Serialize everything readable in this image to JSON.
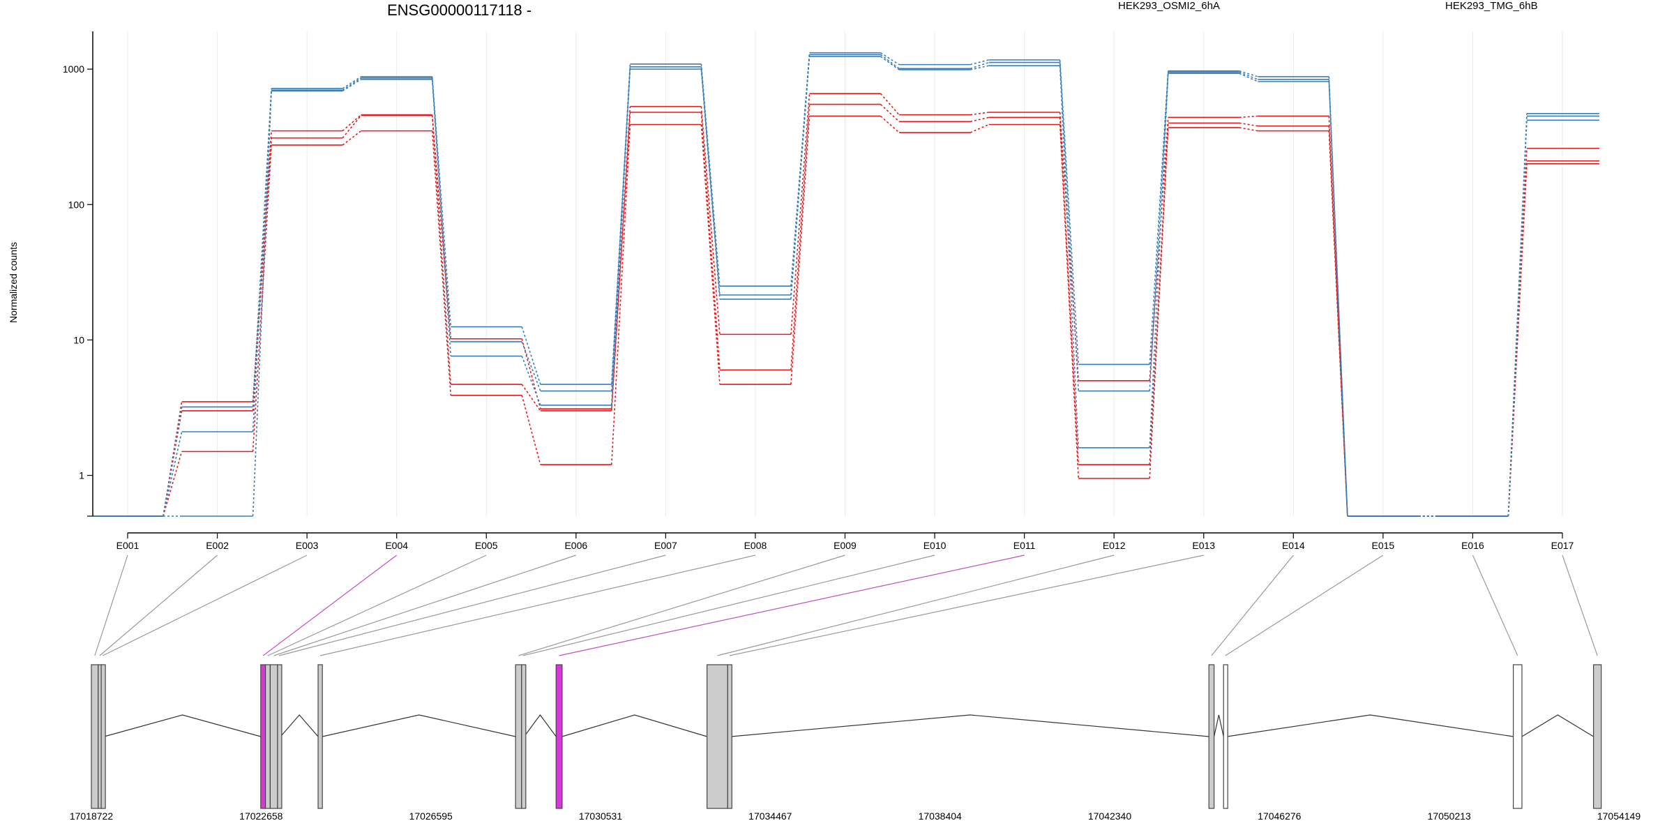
{
  "chart_data": {
    "type": "line",
    "title": "ENSG00000117118 -",
    "ylabel": "Normalized counts",
    "yscale": "log",
    "ylim": [
      0.5,
      1900
    ],
    "yticks": [
      1,
      10,
      100,
      1000
    ],
    "ytick_labels": [
      "1",
      "10",
      "100",
      "1000"
    ],
    "grid": true,
    "legend_position": "top",
    "categories": [
      "E001",
      "E002",
      "E003",
      "E004",
      "E005",
      "E006",
      "E007",
      "E008",
      "E009",
      "E010",
      "E011",
      "E012",
      "E013",
      "E014",
      "E015",
      "E016",
      "E017"
    ],
    "groups": [
      {
        "name": "HEK293_OSMI2_6hA",
        "color": "#e41a1c"
      },
      {
        "name": "HEK293_TMG_6hB",
        "color": "#377eb8"
      }
    ],
    "series": [
      {
        "group": 0,
        "values": [
          0.5,
          3.5,
          350,
          460,
          10.2,
          3.1,
          530,
          11,
          660,
          460,
          480,
          5.0,
          440,
          450,
          0.5,
          0.5,
          260
        ]
      },
      {
        "group": 0,
        "values": [
          0.5,
          3.0,
          310,
          455,
          4.7,
          3.0,
          480,
          6.0,
          550,
          410,
          440,
          1.2,
          400,
          380,
          0.5,
          0.5,
          210
        ]
      },
      {
        "group": 0,
        "values": [
          0.5,
          1.5,
          275,
          350,
          3.9,
          1.2,
          390,
          4.7,
          450,
          340,
          390,
          0.95,
          370,
          350,
          0.5,
          0.5,
          200
        ]
      },
      {
        "group": 1,
        "values": [
          0.5,
          3.2,
          720,
          880,
          12.5,
          4.7,
          1090,
          25,
          1320,
          1080,
          1170,
          6.6,
          970,
          880,
          0.5,
          0.5,
          470
        ]
      },
      {
        "group": 1,
        "values": [
          0.5,
          2.1,
          700,
          860,
          9.7,
          4.2,
          1040,
          21.5,
          1280,
          1010,
          1120,
          4.2,
          950,
          840,
          0.5,
          0.5,
          450
        ]
      },
      {
        "group": 1,
        "values": [
          0.5,
          0.5,
          690,
          840,
          7.6,
          3.3,
          1000,
          20,
          1240,
          990,
          1060,
          1.6,
          930,
          810,
          0.5,
          0.5,
          420
        ]
      }
    ],
    "exons": [
      {
        "id": "E001",
        "start": 17018722,
        "end": 17018880,
        "type": "tested"
      },
      {
        "id": "E002",
        "start": 17018880,
        "end": 17018950,
        "type": "tested"
      },
      {
        "id": "E003",
        "start": 17018950,
        "end": 17019020,
        "type": "tested"
      },
      {
        "id": "E004",
        "start": 17022650,
        "end": 17022760,
        "type": "significant"
      },
      {
        "id": "E005",
        "start": 17022760,
        "end": 17022870,
        "type": "tested"
      },
      {
        "id": "E006",
        "start": 17022870,
        "end": 17023040,
        "type": "tested"
      },
      {
        "id": "E007",
        "start": 17023040,
        "end": 17023110,
        "type": "tested"
      },
      {
        "id": "E008",
        "start": 17023980,
        "end": 17024080,
        "type": "tested"
      },
      {
        "id": "E009",
        "start": 17028560,
        "end": 17028700,
        "type": "tested"
      },
      {
        "id": "E010",
        "start": 17028700,
        "end": 17028760,
        "type": "tested"
      },
      {
        "id": "E011",
        "start": 17029500,
        "end": 17029640,
        "type": "significant"
      },
      {
        "id": "E012",
        "start": 17033000,
        "end": 17033480,
        "type": "tested"
      },
      {
        "id": "E013",
        "start": 17033480,
        "end": 17033560,
        "type": "tested"
      },
      {
        "id": "E014",
        "start": 17044640,
        "end": 17044760,
        "type": "tested"
      },
      {
        "id": "E015",
        "start": 17044980,
        "end": 17045060,
        "type": "untested"
      },
      {
        "id": "E016",
        "start": 17051700,
        "end": 17051900,
        "type": "untested"
      },
      {
        "id": "E017",
        "start": 17053560,
        "end": 17053740,
        "type": "tested"
      }
    ],
    "genomic_axis": {
      "range": [
        17018722,
        17054149
      ],
      "ticks": [
        17018722,
        17022658,
        17026595,
        17030531,
        17034467,
        17038404,
        17042340,
        17046276,
        17050213,
        17054149
      ],
      "tick_labels": [
        "17018722",
        "17022658",
        "17026595",
        "17030531",
        "17034467",
        "17038404",
        "17042340",
        "17046276",
        "17050213",
        "17054149"
      ]
    },
    "colors": {
      "tested": "#cccccc",
      "significant": "#d63ad6",
      "untested": "#ffffff",
      "connector": "#999999",
      "connector_significant": "#c050c0"
    }
  }
}
